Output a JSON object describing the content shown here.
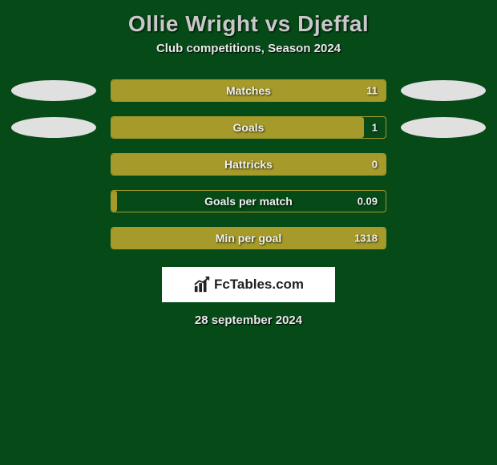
{
  "title": "Ollie Wright vs Djeffal",
  "subtitle": "Club competitions, Season 2024",
  "colors": {
    "background": "#054a17",
    "bar_fill": "#a59a2a",
    "bar_border": "#a59a2a",
    "ellipse": "#e0e0e0",
    "logo_bg": "#ffffff",
    "logo_text": "#222222"
  },
  "stats": [
    {
      "label": "Matches",
      "value": "11",
      "fill_pct": 100,
      "left_ellipse": true,
      "right_ellipse": true
    },
    {
      "label": "Goals",
      "value": "1",
      "fill_pct": 92,
      "left_ellipse": true,
      "right_ellipse": true
    },
    {
      "label": "Hattricks",
      "value": "0",
      "fill_pct": 100,
      "left_ellipse": false,
      "right_ellipse": false
    },
    {
      "label": "Goals per match",
      "value": "0.09",
      "fill_pct": 2,
      "left_ellipse": false,
      "right_ellipse": false
    },
    {
      "label": "Min per goal",
      "value": "1318",
      "fill_pct": 100,
      "left_ellipse": false,
      "right_ellipse": false
    }
  ],
  "logo_text": "FcTables.com",
  "date": "28 september 2024"
}
